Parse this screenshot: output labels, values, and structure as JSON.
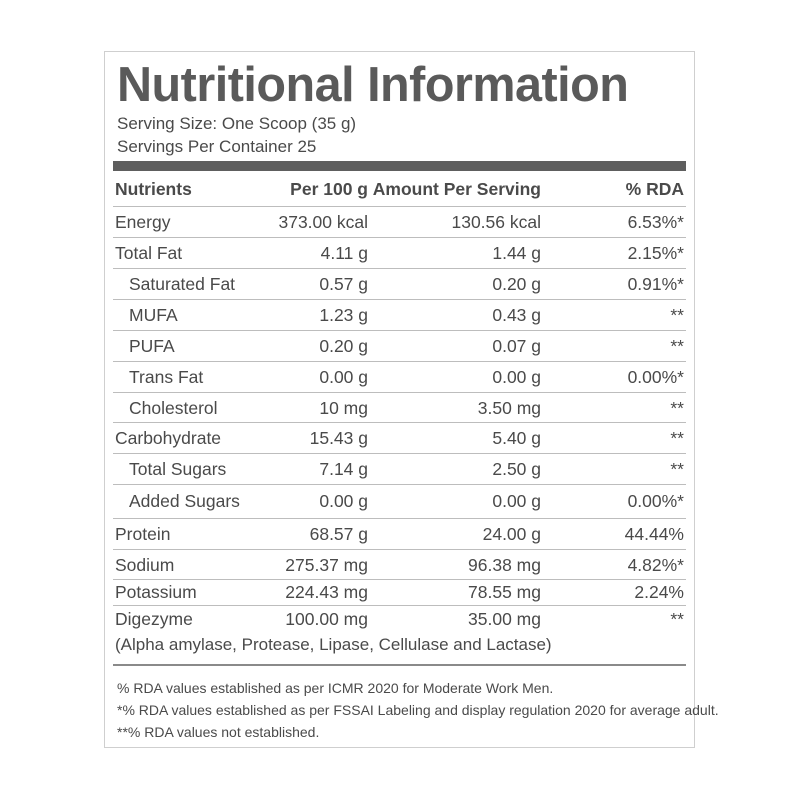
{
  "title": "Nutritional Information",
  "serving_size": "Serving Size: One Scoop (35 g)",
  "servings_per_container": "Servings Per Container 25",
  "headers": {
    "nutrient": "Nutrients",
    "per100": "Per 100 g",
    "serving": "Amount Per Serving",
    "rda": "% RDA"
  },
  "rows": [
    {
      "name": "Energy",
      "per100": "373.00 kcal",
      "serving": "130.56 kcal",
      "rda": "6.53%*"
    },
    {
      "name": "Total Fat",
      "per100": "4.11 g",
      "serving": "1.44 g",
      "rda": "2.15%*"
    },
    {
      "name": "Saturated Fat",
      "per100": "0.57 g",
      "serving": "0.20 g",
      "rda": "0.91%*"
    },
    {
      "name": "MUFA",
      "per100": "1.23 g",
      "serving": "0.43 g",
      "rda": "**"
    },
    {
      "name": "PUFA",
      "per100": "0.20 g",
      "serving": "0.07 g",
      "rda": "**"
    },
    {
      "name": "Trans Fat",
      "per100": "0.00 g",
      "serving": "0.00 g",
      "rda": "0.00%*"
    },
    {
      "name": "Cholesterol",
      "per100": "10 mg",
      "serving": "3.50 mg",
      "rda": "**"
    },
    {
      "name": "Carbohydrate",
      "per100": "15.43 g",
      "serving": "5.40 g",
      "rda": "**"
    },
    {
      "name": "Total Sugars",
      "per100": "7.14 g",
      "serving": "2.50 g",
      "rda": "**"
    },
    {
      "name": "Added Sugars",
      "per100": "0.00 g",
      "serving": "0.00 g",
      "rda": "0.00%*"
    },
    {
      "name": "Protein",
      "per100": "68.57 g",
      "serving": "24.00 g",
      "rda": "44.44%"
    },
    {
      "name": "Sodium",
      "per100": "275.37 mg",
      "serving": "96.38 mg",
      "rda": "4.82%*"
    },
    {
      "name": "Potassium",
      "per100": "224.43 mg",
      "serving": "78.55 mg",
      "rda": "2.24%"
    },
    {
      "name": "Digezyme",
      "per100": "100.00 mg",
      "serving": "35.00 mg",
      "rda": "**",
      "note": "(Alpha amylase, Protease, Lipase, Cellulase and Lactase)"
    }
  ],
  "footnotes": [
    "% RDA values established as per ICMR 2020 for Moderate Work Men.",
    "*% RDA values established as per FSSAI Labeling and display regulation 2020 for average adult.",
    "**% RDA values not established."
  ]
}
